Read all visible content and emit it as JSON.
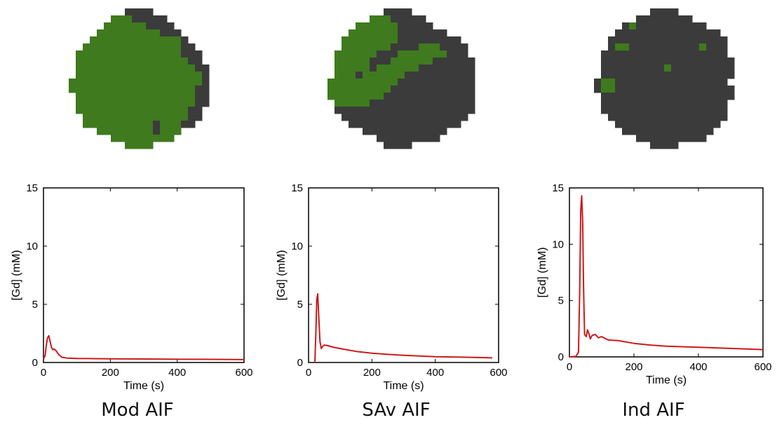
{
  "colors": {
    "mask_dark": "#3b3b3b",
    "mask_green": "#3f7a1e",
    "curve": "#cc1a1a",
    "axis": "#000000"
  },
  "panels": [
    {
      "title": "Mod AIF"
    },
    {
      "title": "SAv AIF"
    },
    {
      "title": "Ind AIF"
    }
  ],
  "chart_data": [
    {
      "type": "line",
      "title": "",
      "xlabel": "Time (s)",
      "ylabel": "[Gd] (mM)",
      "xlim": [
        0,
        600
      ],
      "ylim": [
        0,
        15
      ],
      "xticks": [
        0,
        200,
        400,
        600
      ],
      "yticks": [
        0,
        5,
        10,
        15
      ],
      "grid": false,
      "series": [
        {
          "x": [
            0,
            5,
            8,
            12,
            16,
            20,
            24,
            28,
            32,
            38,
            45,
            55,
            70,
            100,
            150,
            200,
            300,
            400,
            500,
            600
          ],
          "y": [
            0.3,
            0.6,
            1.4,
            2.1,
            2.3,
            1.8,
            1.3,
            1.1,
            1.15,
            1.0,
            0.7,
            0.45,
            0.38,
            0.35,
            0.33,
            0.32,
            0.3,
            0.28,
            0.27,
            0.25
          ]
        }
      ]
    },
    {
      "type": "line",
      "title": "",
      "xlabel": "Time (s)",
      "ylabel": "[Gd] (mM)",
      "xlim": [
        0,
        600
      ],
      "ylim": [
        0,
        15
      ],
      "xticks": [
        0,
        200,
        400,
        600
      ],
      "yticks": [
        0,
        5,
        10,
        15
      ],
      "grid": false,
      "series": [
        {
          "x": [
            20,
            23,
            26,
            29,
            32,
            36,
            40,
            45,
            50,
            60,
            80,
            100,
            150,
            200,
            250,
            300,
            400,
            500,
            580
          ],
          "y": [
            0,
            2.5,
            5.4,
            5.9,
            4.0,
            1.8,
            1.2,
            1.4,
            1.5,
            1.45,
            1.3,
            1.2,
            0.95,
            0.8,
            0.7,
            0.62,
            0.5,
            0.45,
            0.4
          ]
        }
      ]
    },
    {
      "type": "line",
      "title": "",
      "xlabel": "Time (s)",
      "ylabel": "[Gd] (mM)",
      "xlim": [
        0,
        600
      ],
      "ylim": [
        0,
        15
      ],
      "xticks": [
        0,
        200,
        400,
        600
      ],
      "yticks": [
        0,
        5,
        10,
        15
      ],
      "grid": false,
      "series": [
        {
          "x": [
            0,
            20,
            28,
            32,
            35,
            38,
            41,
            44,
            47,
            52,
            56,
            60,
            65,
            70,
            80,
            90,
            100,
            120,
            150,
            200,
            250,
            300,
            350,
            400,
            450,
            500,
            550,
            600
          ],
          "y": [
            0,
            0.05,
            0.4,
            6.0,
            13.0,
            14.3,
            12.0,
            6.0,
            2.0,
            1.8,
            2.4,
            2.1,
            1.6,
            1.9,
            2.0,
            1.7,
            1.8,
            1.5,
            1.45,
            1.2,
            1.05,
            0.95,
            0.9,
            0.85,
            0.8,
            0.75,
            0.7,
            0.65
          ]
        }
      ]
    }
  ]
}
